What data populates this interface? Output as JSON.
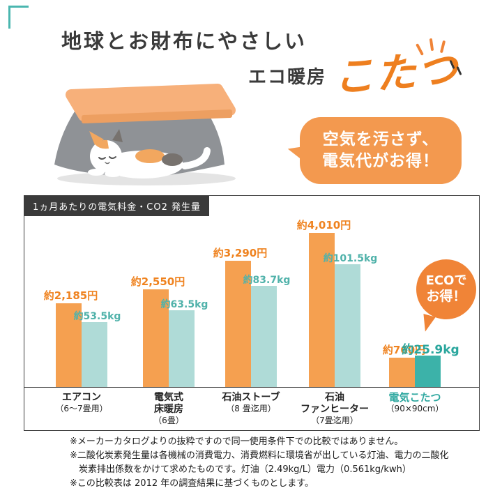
{
  "header": {
    "title": "地球とお財布にやさしい",
    "subtitle_prefix": "エコ暖房",
    "subtitle_main": "こたつ",
    "speech_bubble_line1": "空気を汚さず、",
    "speech_bubble_line2": "電気代がお得！"
  },
  "chart": {
    "header_badge": "1ヵ月あたりの電気料金・CO2 発生量",
    "eco_badge_line1": "ECOで",
    "eco_badge_line2": "お得！"
  },
  "chart_data": {
    "type": "bar",
    "title": "1ヵ月あたりの電気料金・CO2 発生量",
    "categories": [
      "エアコン（6〜7畳用）",
      "電気式床暖房（6畳）",
      "石油ストーブ（8畳迄用）",
      "石油ファンヒーター（7畳迄用）",
      "電気こたつ（90×90cm）"
    ],
    "category_label_lines": [
      [
        "エアコン",
        "（6〜7畳用）"
      ],
      [
        "電気式",
        "床暖房",
        "（6畳）"
      ],
      [
        "石油ストーブ",
        "（8 畳迄用）"
      ],
      [
        "石油",
        "ファンヒーター",
        "（7畳迄用）"
      ],
      [
        "電気こたつ",
        "（90×90cm）"
      ]
    ],
    "series": [
      {
        "name": "電気料金",
        "unit": "円",
        "values": [
          2185,
          2550,
          3290,
          4010,
          760
        ],
        "labels": [
          "約2,185円",
          "約2,550円",
          "約3,290円",
          "約4,010円",
          "約760円"
        ],
        "color": "#F5A050"
      },
      {
        "name": "CO2発生量",
        "unit": "kg",
        "values": [
          53.5,
          63.5,
          83.7,
          101.5,
          25.9
        ],
        "labels": [
          "約53.5kg",
          "約63.5kg",
          "約83.7kg",
          "約101.5kg",
          "約25.9kg"
        ],
        "color": "#AFDBD7",
        "highlight_color": "#3CB2A9"
      }
    ],
    "highlight_index": 4,
    "highlight_category_color": "#2FA8A0",
    "legend": "none",
    "grid": false
  },
  "footnotes": [
    {
      "text": "※メーカーカタログよりの抜粋ですので同一使用条件下での比較ではありません。",
      "indent": false
    },
    {
      "text": "※二酸化炭素発生量は各機械の消費電力、消費燃料に環境省が出している灯油、電力の二酸化",
      "indent": false
    },
    {
      "text": "炭素排出係数をかけて求めたものです。灯油（2.49kg/L）電力（0.561kg/kwh）",
      "indent": true
    },
    {
      "text": "※この比較表は 2012 年の調査結果に基づくものとします。",
      "indent": false
    }
  ],
  "colors": {
    "accent_orange": "#F08437",
    "bar_orange": "#F5A050",
    "bar_teal": "#AFDBD7",
    "bar_teal_highlight": "#3CB2A9",
    "badge_dark": "#3A3A3A",
    "corner_teal": "#4AB6AF"
  }
}
